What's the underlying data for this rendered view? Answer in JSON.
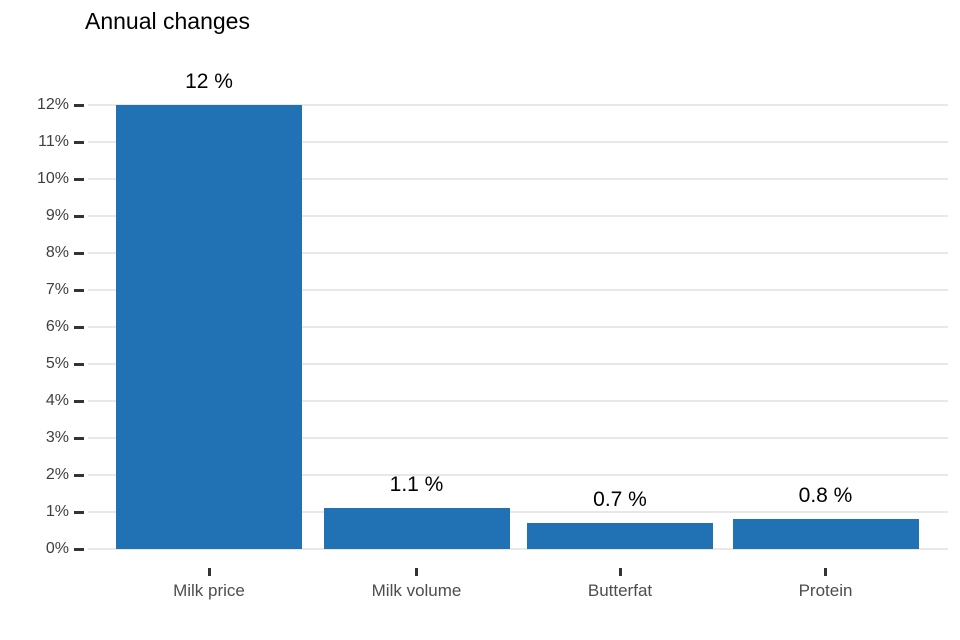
{
  "chart_data": {
    "type": "bar",
    "title": "Annual changes",
    "categories": [
      "Milk price",
      "Milk volume",
      "Butterfat",
      "Protein"
    ],
    "values": [
      12,
      1.1,
      0.7,
      0.8
    ],
    "value_labels": [
      "12 %",
      "1.1 %",
      "0.7 %",
      "0.8 %"
    ],
    "y_tick_labels": [
      "0%",
      "1%",
      "2%",
      "3%",
      "4%",
      "5%",
      "6%",
      "7%",
      "8%",
      "9%",
      "10%",
      "11%",
      "12%"
    ],
    "ylim": [
      0,
      12
    ],
    "xlabel": "",
    "ylabel": "",
    "legend": "none",
    "grid": "horizontal-major",
    "colors": {
      "bar": "#2171b5",
      "gridline": "#e8e8e8",
      "tick": "#333333",
      "y_axis_text": "#404040",
      "x_axis_text": "#4d4d4d",
      "value_label_text": "#000000",
      "title_text": "#000000",
      "background": "#ffffff"
    }
  }
}
